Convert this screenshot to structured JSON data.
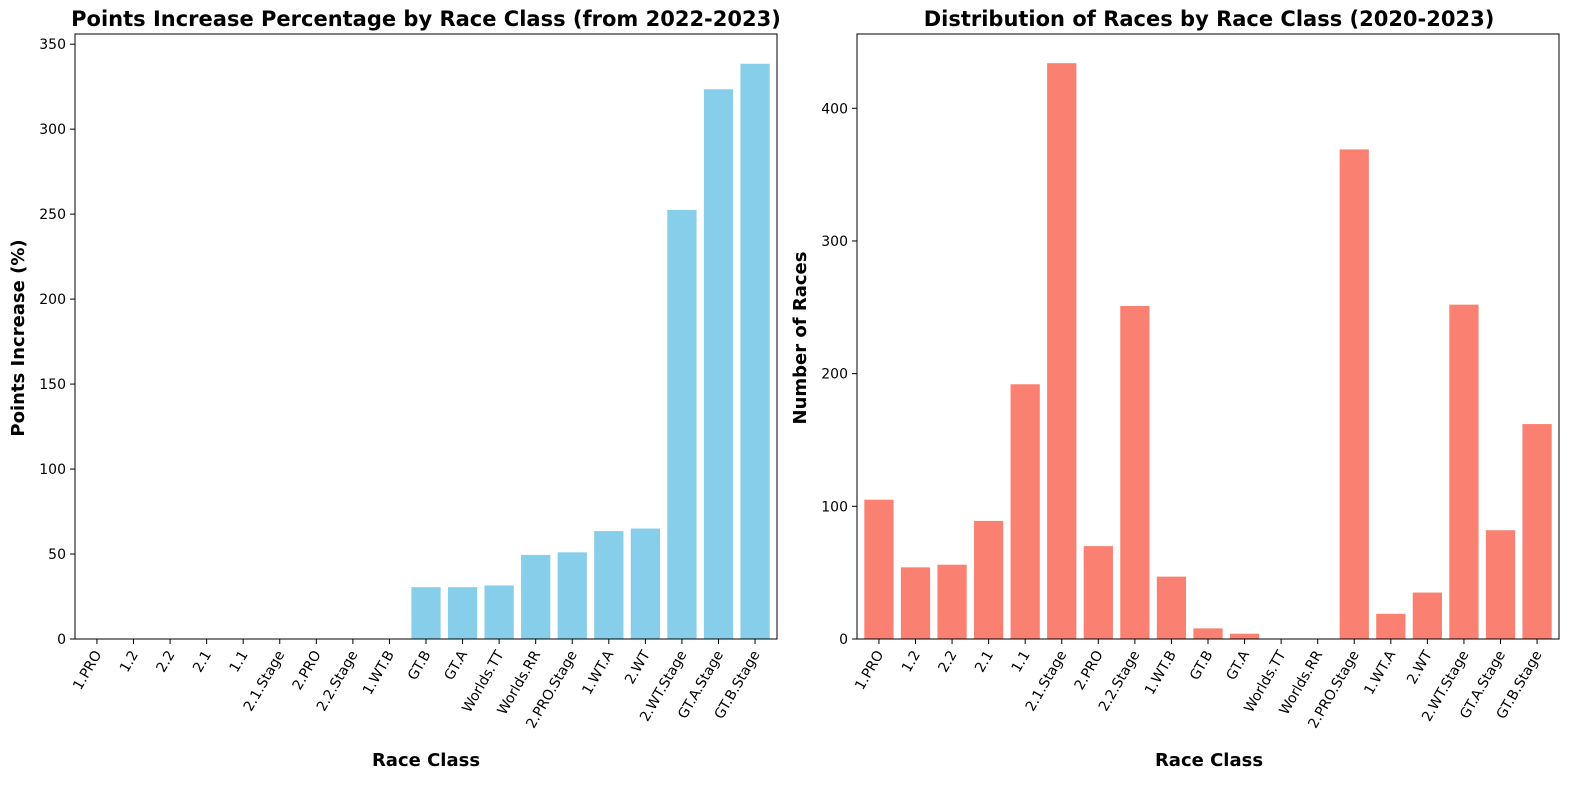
{
  "chart_data": [
    {
      "type": "bar",
      "title": "Points Increase Percentage by Race Class (from 2022-2023)",
      "xlabel": "Race Class",
      "ylabel": "Points Increase (%)",
      "color": "#87CEEB",
      "ylim": [
        0,
        356
      ],
      "yticks": [
        0,
        50,
        100,
        150,
        200,
        250,
        300,
        350
      ],
      "categories": [
        "1.PRO",
        "1.2",
        "2.2",
        "2.1",
        "1.1",
        "2.1.Stage",
        "2.PRO",
        "2.2.Stage",
        "1.WT.B",
        "GT.B",
        "GT.A",
        "Worlds.TT",
        "Worlds.RR",
        "2.PRO.Stage",
        "1.WT.A",
        "2.WT",
        "2.WT.Stage",
        "GT.A.Stage",
        "GT.B.Stage"
      ],
      "values": [
        0,
        0,
        0,
        0,
        0,
        0,
        0,
        0,
        0,
        30.5,
        30.5,
        31.5,
        49.5,
        51,
        63.5,
        65,
        252.5,
        323.5,
        338.5
      ]
    },
    {
      "type": "bar",
      "title": "Distribution of Races by Race Class (2020-2023)",
      "xlabel": "Race Class",
      "ylabel": "Number of Races",
      "color": "#FA8072",
      "ylim": [
        0,
        456
      ],
      "yticks": [
        0,
        100,
        200,
        300,
        400
      ],
      "categories": [
        "1.PRO",
        "1.2",
        "2.2",
        "2.1",
        "1.1",
        "2.1.Stage",
        "2.PRO",
        "2.2.Stage",
        "1.WT.B",
        "GT.B",
        "GT.A",
        "Worlds.TT",
        "Worlds.RR",
        "2.PRO.Stage",
        "1.WT.A",
        "2.WT",
        "2.WT.Stage",
        "GT.A.Stage",
        "GT.B.Stage"
      ],
      "values": [
        105,
        54,
        56,
        89,
        192,
        434,
        70,
        251,
        47,
        8,
        4,
        0,
        0,
        369,
        19,
        35,
        252,
        82,
        162
      ]
    }
  ]
}
